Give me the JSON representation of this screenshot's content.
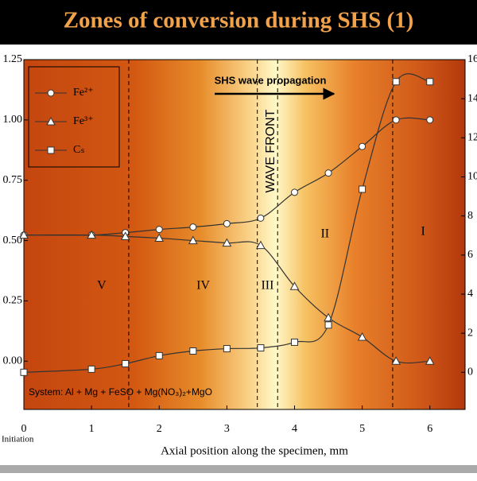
{
  "chart_data": {
    "type": "line",
    "title": "Zones of conversion during SHS (1)",
    "x_label": "Axial position along the specimen, mm",
    "x_note": "Initiation",
    "annotation": "SHS wave propagation",
    "wave_front": "WAVE FRONT",
    "system_note": "System: Al + Mg + FeSO + Mg(NO₃)₂+MgO",
    "zones": [
      {
        "label": "V",
        "x": 1.15
      },
      {
        "label": "IV",
        "x": 2.65
      },
      {
        "label": "III",
        "x": 3.6
      },
      {
        "label": "II",
        "x": 4.45
      },
      {
        "label": "I",
        "x": 5.9
      }
    ],
    "boundaries": [
      1.55,
      3.45,
      3.75,
      5.45
    ],
    "x": [
      0,
      1,
      1.5,
      2,
      2.5,
      3,
      3.5,
      4,
      4.5,
      5,
      5.5,
      6
    ],
    "series": [
      {
        "name": "Fe²⁺",
        "marker": "circle",
        "color": "#333",
        "values": [
          0.523,
          0.523,
          0.533,
          0.546,
          0.556,
          0.57,
          0.593,
          0.7,
          0.78,
          0.89,
          1.0,
          1.0
        ]
      },
      {
        "name": "Fe³⁺",
        "marker": "triangle",
        "color": "#333",
        "values": [
          0.523,
          0.523,
          0.517,
          0.51,
          0.5,
          0.49,
          0.48,
          0.31,
          0.18,
          0.1,
          0.0,
          0.0
        ]
      },
      {
        "name": "Cₛ",
        "marker": "square",
        "color": "#333",
        "axis": "y2",
        "values": [
          0,
          0.16,
          0.44,
          0.85,
          1.09,
          1.21,
          1.25,
          1.54,
          2.42,
          9.37,
          14.87,
          14.87
        ]
      }
    ],
    "xlim": [
      0,
      6.52
    ],
    "xticks": [
      0,
      1,
      2,
      3,
      4,
      5,
      6
    ],
    "ylim": [
      -0.2,
      1.25
    ],
    "yticks": [
      {
        "value": 0,
        "label": "0.00"
      },
      {
        "value": 0.25,
        "label": "0.25"
      },
      {
        "value": 0.5,
        "label": "0.50"
      },
      {
        "value": 0.75,
        "label": "0.75"
      },
      {
        "value": 1,
        "label": "1.00"
      },
      {
        "value": 1.25,
        "label": "1.25"
      }
    ],
    "y2lim": [
      -1.9,
      16
    ],
    "y2ticks": [
      0,
      2,
      4,
      6,
      8,
      10,
      12,
      14,
      16
    ]
  }
}
